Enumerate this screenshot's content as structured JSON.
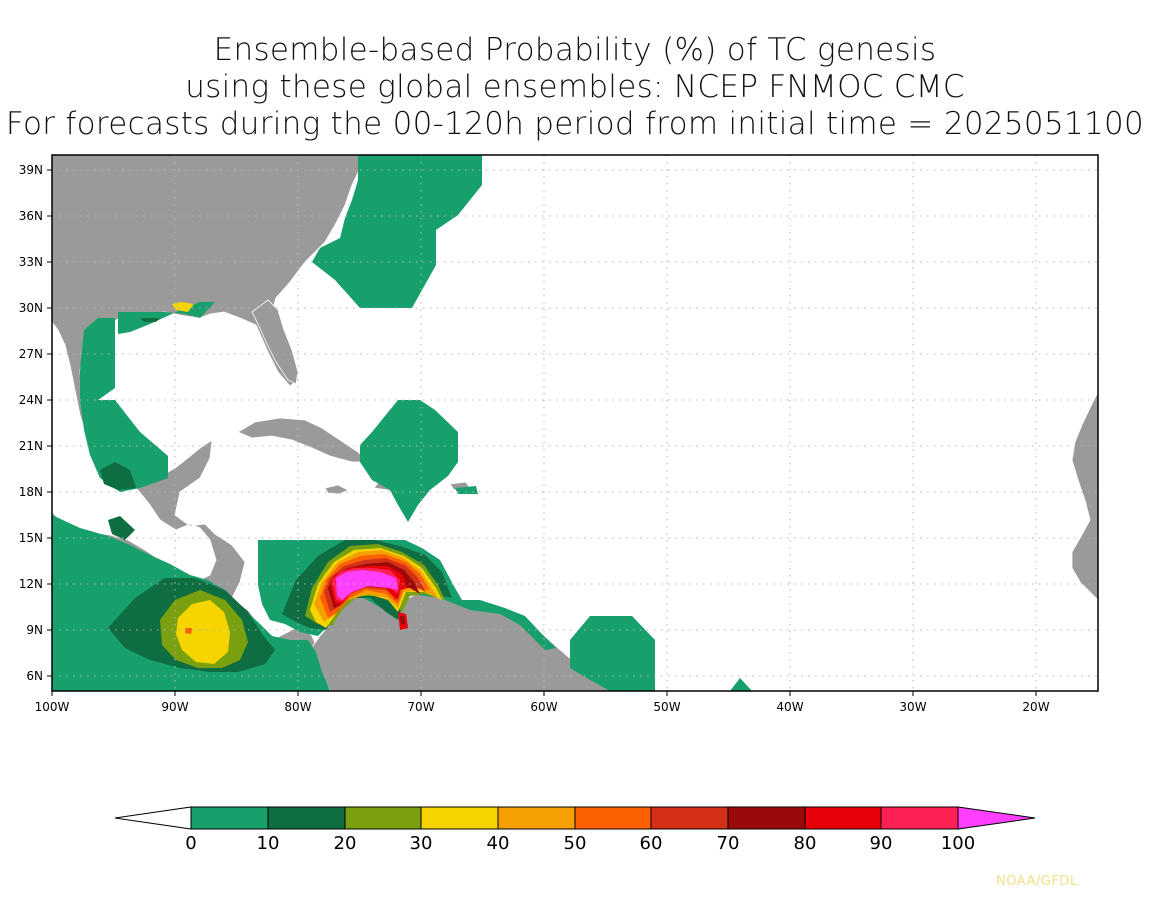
{
  "title": {
    "line1": "Ensemble-based Probability (%) of TC genesis",
    "line2": "using these global ensembles:   NCEP FNMOC CMC",
    "line3": "For forecasts during the 00-120h period from initial time = 2025051100"
  },
  "map": {
    "projection": "lat-lon",
    "lon_range": [
      -100,
      -15
    ],
    "lat_range": [
      5,
      40
    ],
    "land_color": "#9a9a9a",
    "ocean_color": "#ffffff",
    "grid": "dotted",
    "lat_ticks": [
      "39N",
      "36N",
      "33N",
      "30N",
      "27N",
      "24N",
      "21N",
      "18N",
      "15N",
      "12N",
      "9N",
      "6N"
    ],
    "lon_ticks": [
      "100W",
      "90W",
      "80W",
      "70W",
      "60W",
      "50W",
      "40W",
      "30W",
      "20W"
    ]
  },
  "colorbar": {
    "labels": [
      "0",
      "10",
      "20",
      "30",
      "40",
      "50",
      "60",
      "70",
      "80",
      "90",
      "100"
    ],
    "colors": [
      "#ffffff",
      "#17a06c",
      "#0e6d41",
      "#7aa00f",
      "#f5d400",
      "#f5a000",
      "#fb6000",
      "#d43018",
      "#9a0a0a",
      "#e80008",
      "#fe2054",
      "#fe40fe"
    ]
  },
  "credit": "NOAA/GFDL"
}
